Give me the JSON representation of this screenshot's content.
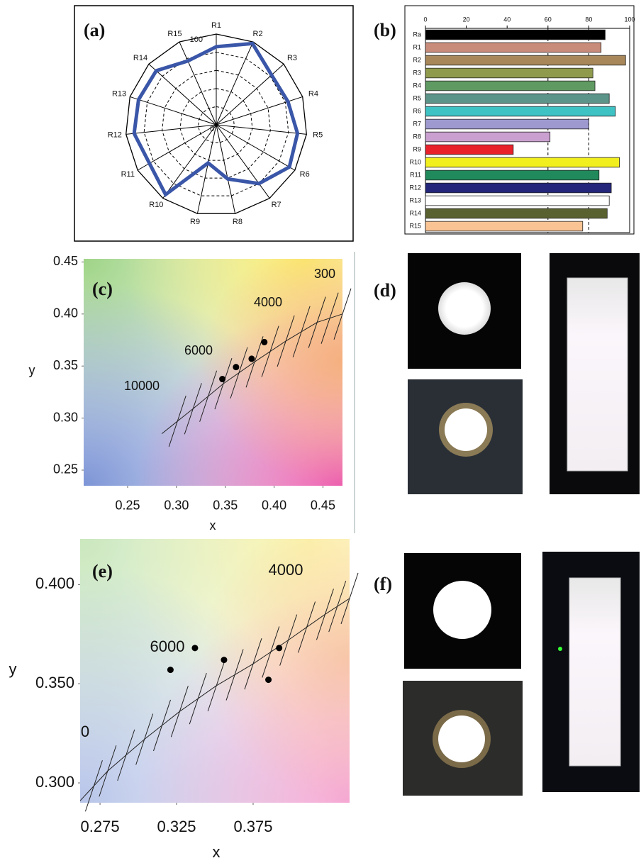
{
  "chart_data": [
    {
      "type": "radar",
      "panel": "(a)",
      "categories": [
        "R1",
        "R2",
        "R3",
        "R4",
        "R5",
        "R6",
        "R7",
        "R8",
        "R9",
        "R10",
        "R11",
        "R12",
        "R13",
        "R14",
        "R15"
      ],
      "values": [
        86,
        98,
        82,
        83,
        90,
        93,
        80,
        61,
        43,
        95,
        85,
        91,
        90,
        89,
        77
      ],
      "color": "#3a56a8",
      "rlim": [
        0,
        100
      ],
      "rticks": [
        0,
        100
      ],
      "rgrid": [
        20,
        40,
        60,
        80
      ]
    },
    {
      "type": "bar",
      "panel": "(b)",
      "orientation": "horizontal",
      "categories": [
        "Ra",
        "R1",
        "R2",
        "R3",
        "R4",
        "R5",
        "R6",
        "R7",
        "R8",
        "R9",
        "R10",
        "R11",
        "R12",
        "R13",
        "R14",
        "R15"
      ],
      "values": [
        88,
        86,
        98,
        82,
        83,
        90,
        93,
        80,
        61,
        43,
        95,
        85,
        91,
        90,
        89,
        77
      ],
      "colors": [
        "#000000",
        "#c98c7a",
        "#a8885a",
        "#8f9a4c",
        "#5f9a62",
        "#5d948a",
        "#3fc2c4",
        "#9e9ad0",
        "#c9a0cf",
        "#e8212a",
        "#f2ef1f",
        "#218a5c",
        "#23267a",
        "#ffffff",
        "#5a6130",
        "#f9c393"
      ],
      "xlim": [
        0,
        100
      ],
      "xticks": [
        0,
        20,
        40,
        60,
        80,
        100
      ],
      "ref_lines": [
        60,
        80
      ]
    },
    {
      "type": "scatter",
      "panel": "(c)",
      "x_label": "x",
      "y_label": "y",
      "x": [
        0.347,
        0.361,
        0.377,
        0.39
      ],
      "values": [
        0.3375,
        0.349,
        0.357,
        0.373
      ],
      "color": "#000000",
      "curve": {
        "x": [
          0.285,
          0.317,
          0.348,
          0.38,
          0.412,
          0.444,
          0.47
        ],
        "values": [
          0.285,
          0.309,
          0.333,
          0.354,
          0.374,
          0.392,
          0.4
        ]
      },
      "annotations": [
        "10000",
        "6000",
        "4000",
        "300"
      ],
      "xlim": [
        0.205,
        0.47
      ],
      "ylim": [
        0.235,
        0.453
      ],
      "xticks": [
        0.25,
        {
          "value": 0.3,
          "label": "0.30"
        },
        0.35,
        {
          "value": 0.4,
          "label": "0.40"
        },
        0.45
      ],
      "yticks": [
        0.25,
        {
          "value": 0.3,
          "label": "0.30"
        },
        0.35,
        {
          "value": 0.4,
          "label": "0.40"
        },
        0.45
      ]
    },
    {
      "type": "scatter",
      "panel": "(e)",
      "x_label": "x",
      "y_label": "y",
      "x": [
        0.321,
        0.337,
        0.356,
        0.385,
        0.392
      ],
      "values": [
        0.357,
        0.368,
        0.362,
        0.352,
        0.368
      ],
      "color": "#000000",
      "curve": {
        "x": [
          0.262,
          0.28,
          0.304,
          0.327,
          0.351,
          0.375,
          0.398,
          0.422,
          0.438
        ],
        "values": [
          0.291,
          0.306,
          0.322,
          0.336,
          0.349,
          0.36,
          0.372,
          0.385,
          0.393
        ]
      },
      "annotations": [
        "4000",
        "6000",
        "0"
      ],
      "xlim": [
        0.262,
        0.438
      ],
      "ylim": [
        0.29,
        0.423
      ],
      "xticks": [
        0.275,
        0.325,
        0.375
      ],
      "yticks": [
        {
          "value": 0.3,
          "label": "0.300"
        },
        {
          "value": 0.35,
          "label": "0.350"
        },
        {
          "value": 0.4,
          "label": "0.400"
        }
      ]
    }
  ],
  "photo_panels": [
    {
      "label": "(d)"
    },
    {
      "label": "(f)"
    }
  ]
}
